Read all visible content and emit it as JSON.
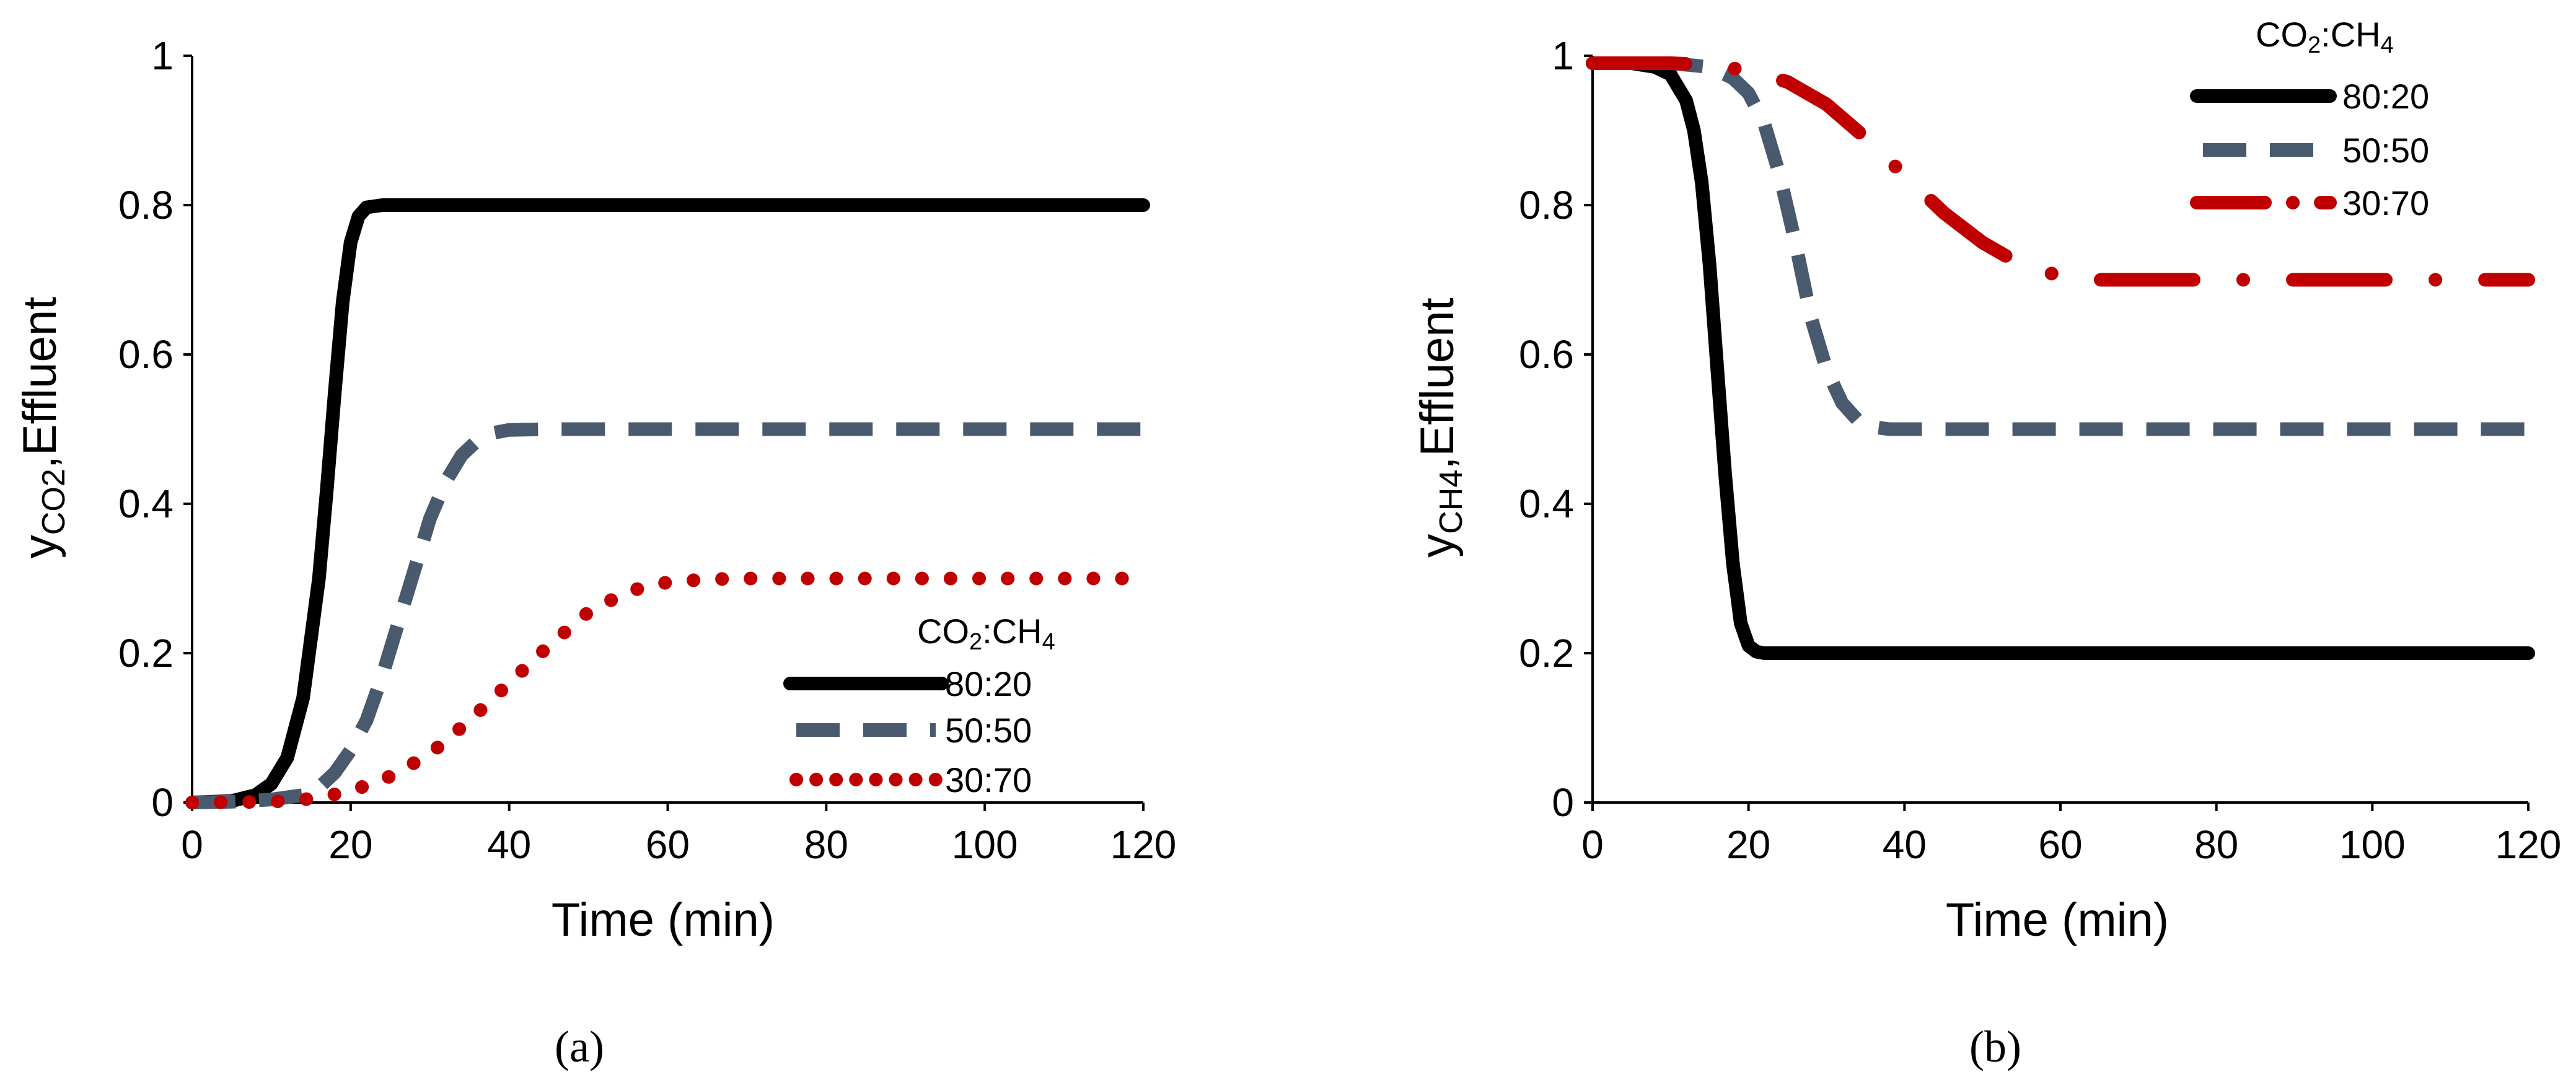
{
  "chart_data": [
    {
      "type": "line",
      "panel": "a",
      "panel_label": "(a)",
      "xlabel": "Time (min)",
      "ylabel_main": "y",
      "ylabel_sub": "CO2",
      "ylabel_rest": ",Effluent",
      "xlim": [
        0,
        120
      ],
      "ylim": [
        0,
        1
      ],
      "xticks": [
        "0",
        "20",
        "40",
        "60",
        "80",
        "100",
        "120"
      ],
      "yticks": [
        "0",
        "0.2",
        "0.4",
        "0.6",
        "0.8",
        "1"
      ],
      "legend": {
        "title_main": "CO",
        "title_sub1": "2",
        "title_mid": ":CH",
        "title_sub2": "4",
        "placement": "bottom-right"
      },
      "series": [
        {
          "name": "80:20",
          "style": "solid",
          "color": "#000000",
          "x": [
            0,
            5,
            8,
            10,
            12,
            14,
            16,
            17,
            18,
            19,
            20,
            21,
            22,
            24,
            26,
            30,
            40,
            60,
            80,
            100,
            120
          ],
          "y": [
            0,
            0.002,
            0.01,
            0.025,
            0.06,
            0.14,
            0.3,
            0.42,
            0.55,
            0.67,
            0.75,
            0.785,
            0.797,
            0.8,
            0.8,
            0.8,
            0.8,
            0.8,
            0.8,
            0.8,
            0.8
          ]
        },
        {
          "name": "50:50",
          "style": "dashed",
          "color": "#4a5a6e",
          "x": [
            0,
            5,
            10,
            14,
            16,
            18,
            20,
            22,
            24,
            26,
            28,
            30,
            32,
            34,
            36,
            38,
            40,
            45,
            60,
            80,
            100,
            120
          ],
          "y": [
            0,
            0.001,
            0.004,
            0.01,
            0.02,
            0.04,
            0.07,
            0.11,
            0.17,
            0.24,
            0.31,
            0.38,
            0.43,
            0.465,
            0.485,
            0.495,
            0.499,
            0.5,
            0.5,
            0.5,
            0.5,
            0.5
          ]
        },
        {
          "name": "30:70",
          "style": "dotted",
          "color": "#c00000",
          "x": [
            0,
            10,
            15,
            20,
            25,
            30,
            35,
            40,
            45,
            50,
            55,
            60,
            65,
            70,
            80,
            100,
            120
          ],
          "y": [
            0,
            0.001,
            0.005,
            0.015,
            0.035,
            0.065,
            0.11,
            0.16,
            0.21,
            0.255,
            0.283,
            0.295,
            0.299,
            0.3,
            0.3,
            0.3,
            0.3
          ]
        }
      ]
    },
    {
      "type": "line",
      "panel": "b",
      "panel_label": "(b)",
      "xlabel": "Time (min)",
      "ylabel_main": "y",
      "ylabel_sub": "CH4",
      "ylabel_rest": ",Effluent",
      "xlim": [
        0,
        120
      ],
      "ylim": [
        0,
        1
      ],
      "xticks": [
        "0",
        "20",
        "40",
        "60",
        "80",
        "100",
        "120"
      ],
      "yticks": [
        "0",
        "0.2",
        "0.4",
        "0.6",
        "0.8",
        "1"
      ],
      "legend": {
        "title_main": "CO",
        "title_sub1": "2",
        "title_mid": ":CH",
        "title_sub2": "4",
        "placement": "top-right"
      },
      "series": [
        {
          "name": "80:20",
          "style": "solid",
          "color": "#000000",
          "x": [
            0,
            5,
            8,
            10,
            12,
            13,
            14,
            15,
            16,
            17,
            18,
            19,
            20,
            21,
            22,
            23,
            25,
            30,
            40,
            60,
            80,
            100,
            120
          ],
          "y": [
            0.99,
            0.99,
            0.985,
            0.975,
            0.94,
            0.9,
            0.83,
            0.72,
            0.58,
            0.44,
            0.32,
            0.24,
            0.21,
            0.202,
            0.2,
            0.2,
            0.2,
            0.2,
            0.2,
            0.2,
            0.2,
            0.2,
            0.2
          ]
        },
        {
          "name": "50:50",
          "style": "dashed",
          "color": "#4a5a6e",
          "x": [
            0,
            10,
            15,
            18,
            20,
            22,
            24,
            26,
            28,
            30,
            32,
            34,
            36,
            38,
            40,
            45,
            60,
            80,
            100,
            120
          ],
          "y": [
            0.99,
            0.99,
            0.985,
            0.97,
            0.95,
            0.91,
            0.84,
            0.75,
            0.65,
            0.58,
            0.535,
            0.512,
            0.503,
            0.5,
            0.5,
            0.5,
            0.5,
            0.5,
            0.5,
            0.5
          ]
        },
        {
          "name": "30:70",
          "style": "dashdot",
          "color": "#c00000",
          "x": [
            0,
            10,
            15,
            20,
            25,
            30,
            35,
            40,
            45,
            50,
            55,
            60,
            65,
            70,
            80,
            100,
            120
          ],
          "y": [
            0.99,
            0.99,
            0.988,
            0.98,
            0.965,
            0.935,
            0.89,
            0.84,
            0.79,
            0.75,
            0.72,
            0.705,
            0.7,
            0.7,
            0.7,
            0.7,
            0.7
          ]
        }
      ]
    }
  ]
}
